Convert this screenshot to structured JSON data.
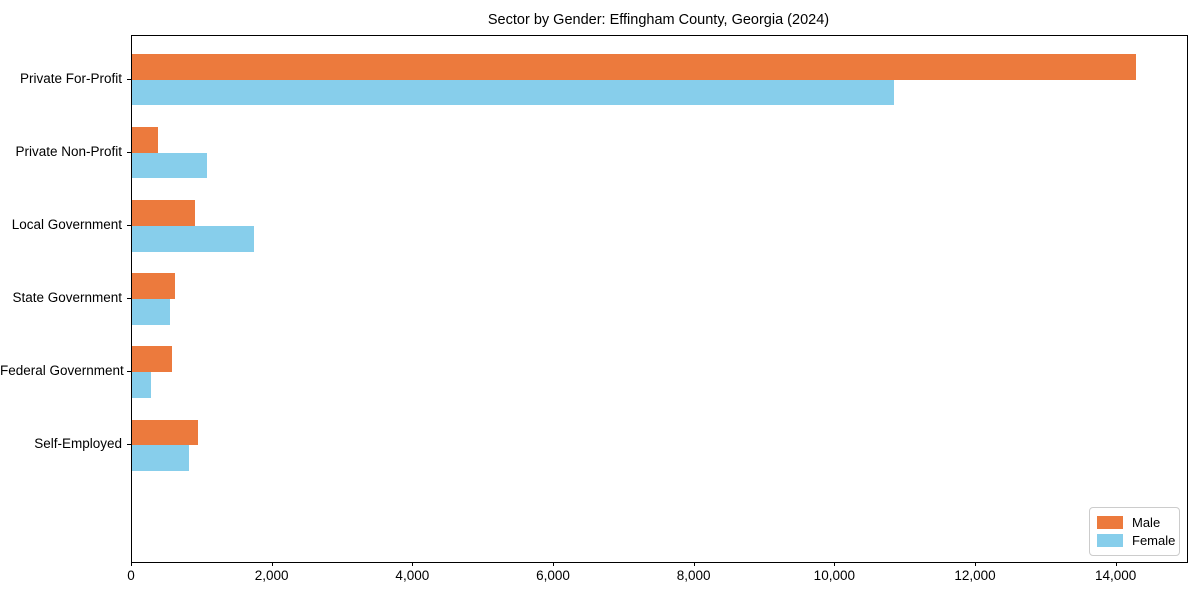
{
  "chart_data": {
    "type": "bar",
    "orientation": "horizontal",
    "title": "Sector by Gender: Effingham County, Georgia (2024)",
    "categories": [
      "Private For-Profit",
      "Private Non-Profit",
      "Local Government",
      "State Government",
      "Federal Government",
      "Self-Employed"
    ],
    "series": [
      {
        "name": "Male",
        "color": "#EC7A3D",
        "values": [
          14270,
          370,
          890,
          610,
          570,
          940
        ]
      },
      {
        "name": "Female",
        "color": "#87CEEB",
        "values": [
          10830,
          1070,
          1730,
          540,
          270,
          810
        ]
      }
    ],
    "xlabel": "",
    "ylabel": "",
    "xlim": [
      0,
      15000
    ],
    "x_ticks": [
      0,
      2000,
      4000,
      6000,
      8000,
      10000,
      12000,
      14000
    ],
    "x_tick_labels": [
      "0",
      "2,000",
      "4,000",
      "6,000",
      "8,000",
      "10,000",
      "12,000",
      "14,000"
    ],
    "grid": false,
    "legend_position": "lower right",
    "axis_color": "#000000"
  }
}
